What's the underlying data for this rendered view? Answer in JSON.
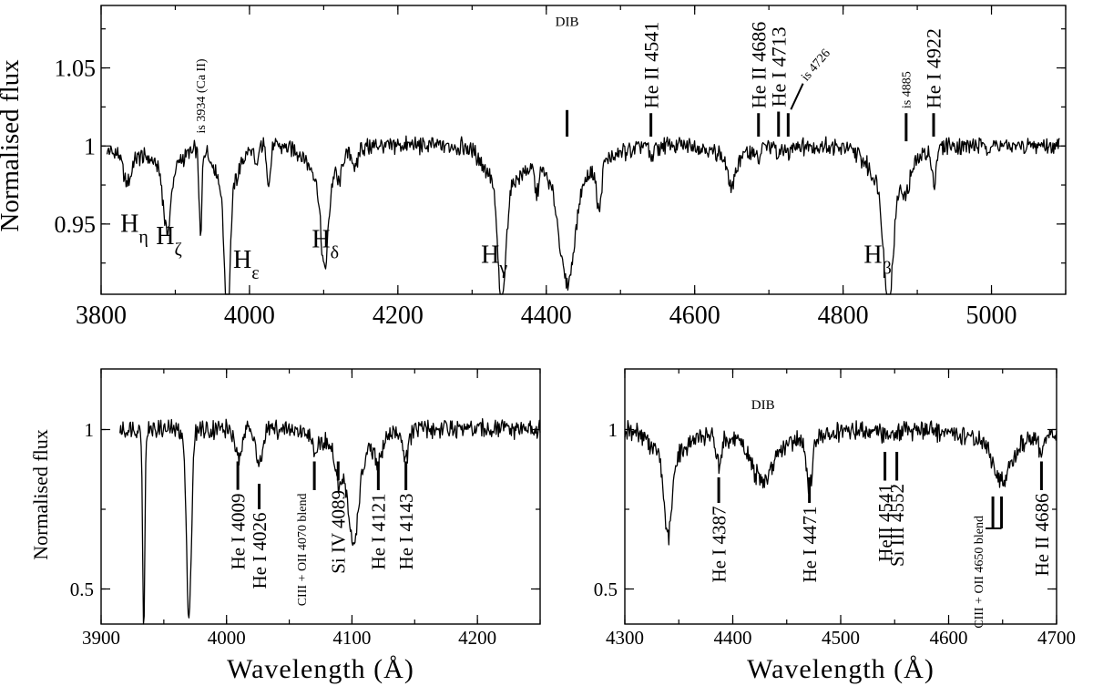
{
  "chart_data": [
    {
      "type": "line",
      "panel": "top",
      "xlim": [
        3800,
        5100
      ],
      "ylim": [
        0.905,
        1.09
      ],
      "ylabel": "Normalised flux",
      "xlabel": "",
      "x_ticks": [
        "3800",
        "4000",
        "4200",
        "4400",
        "4600",
        "4800",
        "5000"
      ],
      "y_ticks": [
        "0.95",
        "1",
        "1.05"
      ],
      "y_tick_values": [
        0.95,
        1.0,
        1.05
      ],
      "x_tick_values": [
        3800,
        4000,
        4200,
        4400,
        4600,
        4800,
        5000
      ],
      "continuum": 1.0,
      "absorption_lines": [
        {
          "x": 3835,
          "depth": 0.018,
          "width": 5
        },
        {
          "x": 3889,
          "depth": 0.04,
          "width": 5
        },
        {
          "x": 3934,
          "depth": 0.058,
          "width": 1.8
        },
        {
          "x": 3970,
          "depth": 0.087,
          "width": 3.5
        },
        {
          "x": 4009,
          "depth": 0.015,
          "width": 2.5
        },
        {
          "x": 4026,
          "depth": 0.022,
          "width": 2.5
        },
        {
          "x": 4101,
          "depth": 0.058,
          "width": 5
        },
        {
          "x": 4121,
          "depth": 0.012,
          "width": 2.5
        },
        {
          "x": 4143,
          "depth": 0.015,
          "width": 2.5
        },
        {
          "x": 4340,
          "depth": 0.075,
          "width": 5
        },
        {
          "x": 4387,
          "depth": 0.015,
          "width": 2.5
        },
        {
          "x": 4428,
          "depth": 0.065,
          "width": 10
        },
        {
          "x": 4471,
          "depth": 0.03,
          "width": 3
        },
        {
          "x": 4541,
          "depth": 0.008,
          "width": 2.5
        },
        {
          "x": 4650,
          "depth": 0.02,
          "width": 5
        },
        {
          "x": 4686,
          "depth": 0.01,
          "width": 2.5
        },
        {
          "x": 4713,
          "depth": 0.008,
          "width": 2.5
        },
        {
          "x": 4726,
          "depth": 0.006,
          "width": 2.5
        },
        {
          "x": 4861,
          "depth": 0.075,
          "width": 6
        },
        {
          "x": 4885,
          "depth": 0.012,
          "width": 4
        },
        {
          "x": 4922,
          "depth": 0.022,
          "width": 3
        }
      ],
      "line_labels": [
        {
          "label": "H",
          "sub": "η",
          "x": 3826,
          "y": 0.945
        },
        {
          "label": "H",
          "sub": "ζ",
          "x": 3874,
          "y": 0.937
        },
        {
          "label": "H",
          "sub": "ε",
          "x": 3978,
          "y": 0.922
        },
        {
          "label": "H",
          "sub": "δ",
          "x": 4084,
          "y": 0.935
        },
        {
          "label": "H",
          "sub": "γ",
          "x": 4312,
          "y": 0.925
        },
        {
          "label": "H",
          "sub": "β",
          "x": 4828,
          "y": 0.925
        }
      ],
      "markers": [
        {
          "text": "DIB",
          "x": 4428,
          "y1": 1.006,
          "y2": 1.023,
          "label_y": 1.077,
          "vertical": false,
          "size": 15
        },
        {
          "text": "He II 4541",
          "x": 4541,
          "y1": 1.006,
          "y2": 1.021,
          "label_y": 1.024,
          "vertical": true,
          "size": 22
        },
        {
          "text": "He II 4686",
          "x": 4686,
          "y1": 1.006,
          "y2": 1.021,
          "label_y": 1.024,
          "vertical": true,
          "size": 22
        },
        {
          "text": "He I 4713",
          "x": 4713,
          "y1": 1.006,
          "y2": 1.022,
          "label_y": 1.025,
          "vertical": true,
          "size": 22
        },
        {
          "text": "He I 4922",
          "x": 4922,
          "y1": 1.006,
          "y2": 1.021,
          "label_y": 1.024,
          "vertical": true,
          "size": 22
        },
        {
          "text": "is 4885",
          "x": 4885,
          "y1": 1.003,
          "y2": 1.021,
          "label_y": 1.024,
          "vertical": true,
          "size": 14
        },
        {
          "text": "is 3934  (Ca II)",
          "x": 3934,
          "y1": 1.004,
          "y2": 1.004,
          "label_y": 1.008,
          "vertical": true,
          "size": 14,
          "no_line": true
        },
        {
          "text": "is 4726",
          "x": 4726,
          "y1": 1.006,
          "y2": 1.021,
          "label_y": 1.03,
          "vertical": false,
          "size": 14,
          "diag": [
            4746,
            1.04
          ],
          "rot": -50
        }
      ]
    },
    {
      "type": "line",
      "panel": "bottom-left",
      "xlim": [
        3900,
        4250
      ],
      "ylim": [
        0.39,
        1.19
      ],
      "ylabel": "Normalised flux",
      "xlabel": "Wavelength (Å)",
      "x_ticks": [
        "3900",
        "4000",
        "4100",
        "4200"
      ],
      "x_tick_values": [
        3900,
        4000,
        4100,
        4200
      ],
      "y_ticks": [
        "0.5",
        "1"
      ],
      "y_tick_values": [
        0.5,
        1.0
      ],
      "x_start": 3915,
      "x_end": 4250,
      "continuum": 1.0,
      "absorption_lines": [
        {
          "x": 3934,
          "depth": 0.6,
          "width": 0.9
        },
        {
          "x": 3970,
          "depth": 0.58,
          "width": 2
        },
        {
          "x": 4009,
          "depth": 0.09,
          "width": 2.5
        },
        {
          "x": 4026,
          "depth": 0.12,
          "width": 2.5
        },
        {
          "x": 4070,
          "depth": 0.05,
          "width": 2.5
        },
        {
          "x": 4089,
          "depth": 0.1,
          "width": 2.5
        },
        {
          "x": 4101,
          "depth": 0.27,
          "width": 4
        },
        {
          "x": 4121,
          "depth": 0.07,
          "width": 2.5
        },
        {
          "x": 4143,
          "depth": 0.08,
          "width": 2.5
        }
      ],
      "markers": [
        {
          "text": "He I 4009",
          "x": 4009,
          "y1": 0.811,
          "y2": 0.9,
          "label_y": 0.8,
          "vertical": true,
          "size": 21
        },
        {
          "text": "He I 4026",
          "x": 4026,
          "y1": 0.75,
          "y2": 0.83,
          "label_y": 0.74,
          "vertical": true,
          "size": 21
        },
        {
          "text": "CIII + OII 4070 blend",
          "x": 4070,
          "y1": 0.81,
          "y2": 0.9,
          "label_y": 0.8,
          "vertical": true,
          "size": 14,
          "label_dx": -14
        },
        {
          "text": "Si IV 4089",
          "x": 4089,
          "y1": 0.84,
          "y2": 0.9,
          "label_y": 0.81,
          "vertical": true,
          "size": 21
        },
        {
          "text": "He I  4121",
          "x": 4121,
          "y1": 0.81,
          "y2": 0.9,
          "label_y": 0.8,
          "vertical": true,
          "size": 21
        },
        {
          "text": "He I  4143",
          "x": 4143,
          "y1": 0.81,
          "y2": 0.9,
          "label_y": 0.8,
          "vertical": true,
          "size": 21
        }
      ]
    },
    {
      "type": "line",
      "panel": "bottom-right",
      "xlim": [
        4300,
        4700
      ],
      "ylim": [
        0.39,
        1.19
      ],
      "ylabel": "",
      "xlabel": "Wavelength (Å)",
      "x_ticks": [
        "4300",
        "4400",
        "4500",
        "4600",
        "4700"
      ],
      "x_tick_values": [
        4300,
        4400,
        4500,
        4600,
        4700
      ],
      "y_ticks": [
        "0.5",
        "1"
      ],
      "y_tick_values": [
        0.5,
        1.0
      ],
      "x_start": 4300,
      "x_end": 4700,
      "continuum": 1.0,
      "absorption_lines": [
        {
          "x": 4340,
          "depth": 0.25,
          "width": 3.5
        },
        {
          "x": 4387,
          "depth": 0.08,
          "width": 2.5
        },
        {
          "x": 4428,
          "depth": 0.12,
          "width": 10
        },
        {
          "x": 4471,
          "depth": 0.16,
          "width": 2.8
        },
        {
          "x": 4541,
          "depth": 0.02,
          "width": 2.5
        },
        {
          "x": 4552,
          "depth": 0.02,
          "width": 2.5
        },
        {
          "x": 4650,
          "depth": 0.12,
          "width": 8
        },
        {
          "x": 4686,
          "depth": 0.05,
          "width": 2.5
        }
      ],
      "markers": [
        {
          "text": "DIB",
          "x": 4428,
          "y1": 1.0,
          "y2": 1.0,
          "label_y": 1.065,
          "vertical": false,
          "size": 15,
          "no_line": true
        },
        {
          "text": "He I 4387",
          "x": 4387,
          "y1": 0.77,
          "y2": 0.85,
          "label_y": 0.76,
          "vertical": true,
          "size": 21
        },
        {
          "text": "He I 4471",
          "x": 4471,
          "y1": 0.77,
          "y2": 0.85,
          "label_y": 0.76,
          "vertical": true,
          "size": 21
        },
        {
          "text": "HeII 4541",
          "x": 4541,
          "y1": 0.84,
          "y2": 0.93,
          "label_y": 0.83,
          "vertical": true,
          "size": 21
        },
        {
          "text": "Si III 4552",
          "x": 4552,
          "y1": 0.84,
          "y2": 0.93,
          "label_y": 0.83,
          "vertical": true,
          "size": 21
        },
        {
          "text": "CIII + OII 4650 blend",
          "x": 4641,
          "y1": 0.69,
          "y2": 0.79,
          "label_y": 0.73,
          "vertical": true,
          "size": 14,
          "label_dx": -16,
          "bracket": [
            4641,
            4649
          ]
        },
        {
          "text": "He II 4686",
          "x": 4686,
          "y1": 0.81,
          "y2": 0.9,
          "label_y": 0.8,
          "vertical": true,
          "size": 21
        }
      ]
    }
  ]
}
